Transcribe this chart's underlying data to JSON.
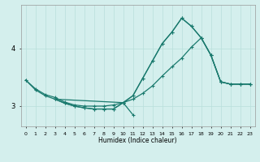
{
  "xlabel": "Humidex (Indice chaleur)",
  "bg_color": "#d4efed",
  "line_color": "#1a7a6e",
  "grid_color": "#b8dfdb",
  "xlim": [
    -0.5,
    23.5
  ],
  "ylim": [
    2.65,
    4.75
  ],
  "yticks": [
    3,
    4
  ],
  "xticks": [
    0,
    1,
    2,
    3,
    4,
    5,
    6,
    7,
    8,
    9,
    10,
    11,
    12,
    13,
    14,
    15,
    16,
    17,
    18,
    19,
    20,
    21,
    22,
    23
  ],
  "line1_x": [
    0,
    1,
    2,
    3,
    4,
    5,
    6,
    7,
    8,
    9,
    10,
    11,
    12,
    13,
    14,
    15,
    16,
    17,
    18,
    19,
    20,
    21,
    22,
    23
  ],
  "line1_y": [
    3.45,
    3.3,
    3.2,
    3.15,
    3.07,
    3.02,
    3.0,
    3.0,
    3.0,
    3.02,
    3.06,
    3.12,
    3.22,
    3.35,
    3.52,
    3.68,
    3.83,
    4.02,
    4.18,
    3.88,
    3.42,
    3.38,
    3.38,
    3.38
  ],
  "line2_x": [
    0,
    1,
    2,
    3,
    10,
    11,
    12,
    13,
    14,
    15,
    16,
    17,
    18,
    19,
    20,
    21,
    22,
    23
  ],
  "line2_y": [
    3.45,
    3.28,
    3.18,
    3.12,
    3.06,
    3.18,
    3.48,
    3.78,
    4.08,
    4.28,
    4.52,
    4.38,
    4.18,
    3.88,
    3.42,
    3.38,
    3.38,
    3.38
  ],
  "line3_x": [
    3,
    4,
    5,
    6,
    7,
    8,
    9,
    10,
    11,
    12,
    13,
    14,
    15,
    16,
    17,
    18,
    19,
    20,
    21,
    22,
    23
  ],
  "line3_y": [
    3.12,
    3.05,
    3.0,
    2.97,
    2.95,
    2.95,
    2.95,
    3.06,
    3.18,
    3.48,
    3.78,
    4.08,
    4.28,
    4.52,
    4.38,
    4.18,
    3.88,
    3.42,
    3.38,
    3.38,
    3.38
  ],
  "line4_x": [
    3,
    4,
    5,
    6,
    7,
    8,
    9,
    10,
    11
  ],
  "line4_y": [
    3.12,
    3.05,
    3.0,
    2.97,
    2.95,
    2.95,
    2.95,
    3.06,
    2.85
  ]
}
